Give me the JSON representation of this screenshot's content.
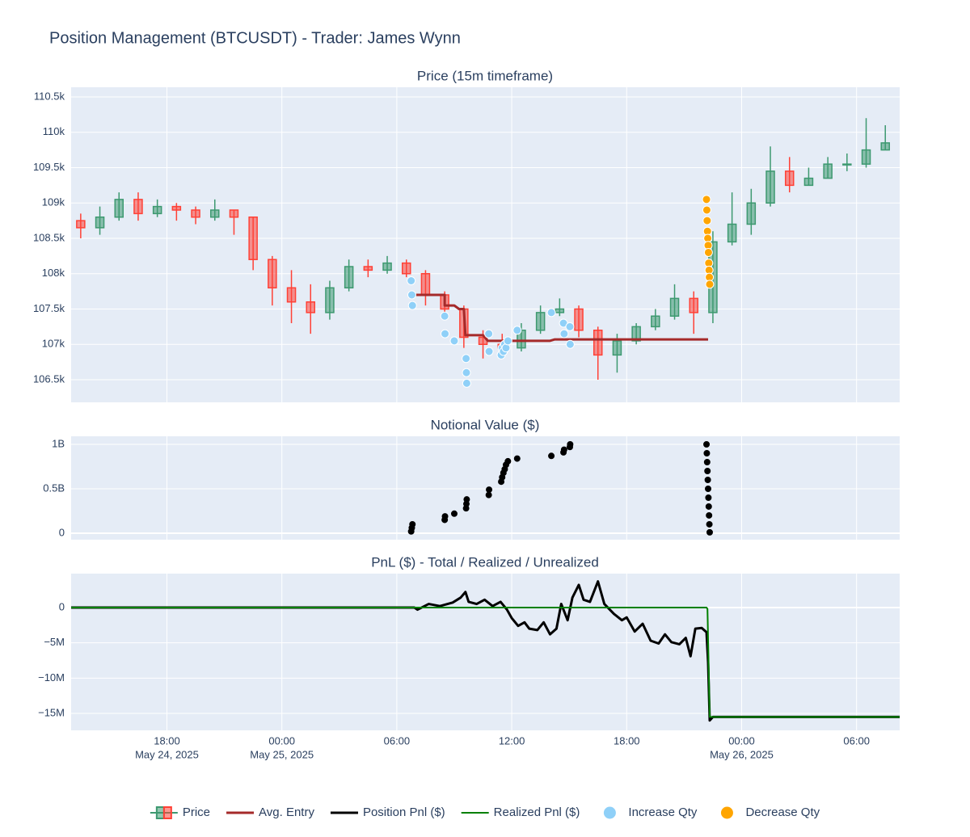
{
  "chart_data": {
    "type": "subplots",
    "title": "Position Management (BTCUSDT) - Trader: James Wynn",
    "xlim": [
      "2025-05-24 13:00",
      "2025-05-26 08:15"
    ],
    "xticks": [
      {
        "value": "2025-05-24 18:00",
        "label": "18:00",
        "date": "May 24, 2025"
      },
      {
        "value": "2025-05-25 00:00",
        "label": "00:00",
        "date": "May 25, 2025"
      },
      {
        "value": "2025-05-25 06:00",
        "label": "06:00"
      },
      {
        "value": "2025-05-25 12:00",
        "label": "12:00"
      },
      {
        "value": "2025-05-25 18:00",
        "label": "18:00"
      },
      {
        "value": "2025-05-26 00:00",
        "label": "00:00",
        "date": "May 26, 2025"
      },
      {
        "value": "2025-05-26 06:00",
        "label": "06:00"
      }
    ],
    "grid": true,
    "panels": [
      {
        "title": "Price (15m timeframe)",
        "ylim": [
          106180,
          110637
        ],
        "yticks": [
          {
            "value": 106500,
            "label": "106.5k"
          },
          {
            "value": 107000,
            "label": "107k"
          },
          {
            "value": 107500,
            "label": "107.5k"
          },
          {
            "value": 108000,
            "label": "108k"
          },
          {
            "value": 108500,
            "label": "108.5k"
          },
          {
            "value": 109000,
            "label": "109k"
          },
          {
            "value": 109500,
            "label": "109.5k"
          },
          {
            "value": 110000,
            "label": "110k"
          },
          {
            "value": 110500,
            "label": "110.5k"
          }
        ],
        "series": [
          {
            "name": "Price",
            "type": "candlestick",
            "increasing_color": "#3d9970",
            "decreasing_color": "#ff4136",
            "x": [
              "2025-05-24 13:30",
              "2025-05-24 14:30",
              "2025-05-24 15:30",
              "2025-05-24 16:30",
              "2025-05-24 17:30",
              "2025-05-24 18:30",
              "2025-05-24 19:30",
              "2025-05-24 20:30",
              "2025-05-24 21:30",
              "2025-05-24 22:30",
              "2025-05-24 23:30",
              "2025-05-25 00:30",
              "2025-05-25 01:30",
              "2025-05-25 02:30",
              "2025-05-25 03:30",
              "2025-05-25 04:30",
              "2025-05-25 05:30",
              "2025-05-25 06:30",
              "2025-05-25 07:30",
              "2025-05-25 08:30",
              "2025-05-25 09:30",
              "2025-05-25 10:30",
              "2025-05-25 11:30",
              "2025-05-25 12:30",
              "2025-05-25 13:30",
              "2025-05-25 14:30",
              "2025-05-25 15:30",
              "2025-05-25 16:30",
              "2025-05-25 17:30",
              "2025-05-25 18:30",
              "2025-05-25 19:30",
              "2025-05-25 20:30",
              "2025-05-25 21:30",
              "2025-05-25 22:30",
              "2025-05-25 23:30",
              "2025-05-26 00:30",
              "2025-05-26 01:30",
              "2025-05-26 02:30",
              "2025-05-26 03:30",
              "2025-05-26 04:30",
              "2025-05-26 05:30",
              "2025-05-26 06:30",
              "2025-05-26 07:30"
            ],
            "open": [
              108750,
              108650,
              108800,
              109050,
              108850,
              108950,
              108900,
              108800,
              108900,
              108800,
              108200,
              107800,
              107600,
              107450,
              107800,
              108100,
              108050,
              108150,
              108000,
              107700,
              107500,
              107100,
              107000,
              106950,
              107200,
              107450,
              107500,
              107200,
              106850,
              107050,
              107250,
              107400,
              107650,
              107450,
              108450,
              108700,
              109000,
              109450,
              109250,
              109350,
              109550,
              109550,
              109750
            ],
            "high": [
              108850,
              108950,
              109150,
              109150,
              109050,
              109000,
              108950,
              109050,
              108900,
              108800,
              108250,
              108050,
              107850,
              107900,
              108200,
              108200,
              108250,
              108200,
              108050,
              107750,
              107550,
              107200,
              107150,
              107300,
              107550,
              107650,
              107550,
              107250,
              107150,
              107300,
              107500,
              107850,
              107750,
              108600,
              109150,
              109200,
              109800,
              109650,
              109500,
              109650,
              109700,
              110200,
              110100
            ],
            "low": [
              108500,
              108550,
              108750,
              108750,
              108800,
              108750,
              108700,
              108750,
              108550,
              108050,
              107550,
              107300,
              107150,
              107350,
              107750,
              107950,
              108000,
              107950,
              107550,
              107350,
              106950,
              106800,
              106850,
              106900,
              107150,
              107400,
              107100,
              106500,
              106600,
              107000,
              107200,
              107350,
              107150,
              107300,
              108400,
              108550,
              108950,
              109150,
              109250,
              109350,
              109450,
              109500,
              109750
            ],
            "close": [
              108650,
              108800,
              109050,
              108850,
              108950,
              108900,
              108800,
              108900,
              108800,
              108200,
              107800,
              107600,
              107450,
              107800,
              108100,
              108050,
              108150,
              108000,
              107700,
              107500,
              107100,
              107000,
              106950,
              107200,
              107450,
              107500,
              107200,
              106850,
              107050,
              107250,
              107400,
              107650,
              107450,
              108450,
              108700,
              109000,
              109450,
              109250,
              109350,
              109550,
              109550,
              109750,
              109850
            ]
          },
          {
            "name": "Avg. Entry",
            "type": "line",
            "color": "#a52a2a",
            "width": 3,
            "x": [
              "2025-05-25 07:00",
              "2025-05-25 08:30",
              "2025-05-25 08:30",
              "2025-05-25 09:00",
              "2025-05-25 09:15",
              "2025-05-25 09:30",
              "2025-05-25 09:35",
              "2025-05-25 10:30",
              "2025-05-25 10:45",
              "2025-05-25 14:00",
              "2025-05-25 14:15",
              "2025-05-25 22:15"
            ],
            "values": [
              107700,
              107700,
              107550,
              107550,
              107500,
              107500,
              107130,
              107130,
              107050,
              107050,
              107070,
              107070
            ]
          },
          {
            "name": "Increase Qty",
            "type": "scatter",
            "color": "#8fd0f8",
            "x": [
              "2025-05-25 06:45",
              "2025-05-25 06:47",
              "2025-05-25 06:49",
              "2025-05-25 08:30",
              "2025-05-25 08:31",
              "2025-05-25 09:00",
              "2025-05-25 09:37",
              "2025-05-25 09:38",
              "2025-05-25 09:39",
              "2025-05-25 10:48",
              "2025-05-25 10:49",
              "2025-05-25 11:27",
              "2025-05-25 11:30",
              "2025-05-25 11:34",
              "2025-05-25 11:38",
              "2025-05-25 11:42",
              "2025-05-25 11:48",
              "2025-05-25 12:17",
              "2025-05-25 14:04",
              "2025-05-25 14:42",
              "2025-05-25 14:44",
              "2025-05-25 15:02",
              "2025-05-25 15:03"
            ],
            "values": [
              107900,
              107700,
              107550,
              107400,
              107150,
              107050,
              106800,
              106600,
              106450,
              107150,
              106900,
              106850,
              106950,
              106900,
              107000,
              106950,
              107050,
              107200,
              107450,
              107300,
              107150,
              107250,
              107000
            ]
          },
          {
            "name": "Decrease Qty",
            "type": "scatter",
            "color": "#ffa500",
            "x": [
              "2025-05-25 22:10",
              "2025-05-25 22:11",
              "2025-05-25 22:12",
              "2025-05-25 22:13",
              "2025-05-25 22:14",
              "2025-05-25 22:15",
              "2025-05-25 22:16",
              "2025-05-25 22:17",
              "2025-05-25 22:18",
              "2025-05-25 22:19",
              "2025-05-25 22:20"
            ],
            "values": [
              109050,
              108900,
              108750,
              108600,
              108500,
              108400,
              108300,
              108150,
              108050,
              107950,
              107850
            ]
          }
        ]
      },
      {
        "title": "Notional Value ($)",
        "ylim": [
          -73000000,
          1091000000
        ],
        "yticks": [
          0,
          {
            "value": 500000000,
            "label": "0.5B"
          },
          {
            "value": 1000000000,
            "label": "1B"
          }
        ],
        "series": [
          {
            "type": "scatter",
            "color": "#000000",
            "x": [
              "2025-05-25 06:45",
              "2025-05-25 06:47",
              "2025-05-25 06:49",
              "2025-05-25 08:30",
              "2025-05-25 08:31",
              "2025-05-25 09:00",
              "2025-05-25 09:37",
              "2025-05-25 09:38",
              "2025-05-25 09:39",
              "2025-05-25 10:48",
              "2025-05-25 10:49",
              "2025-05-25 11:27",
              "2025-05-25 11:30",
              "2025-05-25 11:34",
              "2025-05-25 11:38",
              "2025-05-25 11:42",
              "2025-05-25 11:48",
              "2025-05-25 12:17",
              "2025-05-25 14:04",
              "2025-05-25 14:42",
              "2025-05-25 14:44",
              "2025-05-25 15:02",
              "2025-05-25 15:03",
              "2025-05-25 22:10",
              "2025-05-25 22:11",
              "2025-05-25 22:12",
              "2025-05-25 22:13",
              "2025-05-25 22:14",
              "2025-05-25 22:15",
              "2025-05-25 22:16",
              "2025-05-25 22:17",
              "2025-05-25 22:18",
              "2025-05-25 22:19",
              "2025-05-25 22:20"
            ],
            "values": [
              20000000,
              60000000,
              100000000,
              150000000,
              190000000,
              220000000,
              280000000,
              330000000,
              380000000,
              430000000,
              490000000,
              580000000,
              630000000,
              680000000,
              720000000,
              770000000,
              810000000,
              840000000,
              870000000,
              910000000,
              940000000,
              970000000,
              1000000000,
              1000000000,
              900000000,
              800000000,
              700000000,
              600000000,
              500000000,
              400000000,
              300000000,
              200000000,
              100000000,
              10000000
            ]
          }
        ]
      },
      {
        "title": "PnL ($) - Total / Realized / Unrealized",
        "ylim": [
          -17400000,
          4800000
        ],
        "yticks": [
          {
            "value": -15000000,
            "label": "−15M"
          },
          {
            "value": -10000000,
            "label": "−10M"
          },
          {
            "value": -5000000,
            "label": "−5M"
          },
          0
        ],
        "series": [
          {
            "name": "Position Pnl ($)",
            "type": "line",
            "color": "#000000",
            "width": 3,
            "x": [
              "2025-05-24 13:00",
              "2025-05-25 06:55",
              "2025-05-25 07:05",
              "2025-05-25 07:40",
              "2025-05-25 08:15",
              "2025-05-25 08:55",
              "2025-05-25 09:20",
              "2025-05-25 09:35",
              "2025-05-25 09:45",
              "2025-05-25 10:10",
              "2025-05-25 10:35",
              "2025-05-25 11:00",
              "2025-05-25 11:25",
              "2025-05-25 11:45",
              "2025-05-25 12:00",
              "2025-05-25 12:20",
              "2025-05-25 12:40",
              "2025-05-25 12:55",
              "2025-05-25 13:20",
              "2025-05-25 13:40",
              "2025-05-25 14:00",
              "2025-05-25 14:20",
              "2025-05-25 14:35",
              "2025-05-25 14:55",
              "2025-05-25 15:10",
              "2025-05-25 15:30",
              "2025-05-25 15:45",
              "2025-05-25 16:05",
              "2025-05-25 16:30",
              "2025-05-25 16:50",
              "2025-05-25 17:20",
              "2025-05-25 17:45",
              "2025-05-25 18:00",
              "2025-05-25 18:25",
              "2025-05-25 18:50",
              "2025-05-25 19:15",
              "2025-05-25 19:40",
              "2025-05-25 20:00",
              "2025-05-25 20:20",
              "2025-05-25 20:45",
              "2025-05-25 21:05",
              "2025-05-25 21:20",
              "2025-05-25 21:35",
              "2025-05-25 21:55",
              "2025-05-25 22:10",
              "2025-05-25 22:15",
              "2025-05-25 22:20",
              "2025-05-25 22:30",
              "2025-05-26 08:15"
            ],
            "values": [
              0,
              0,
              -300000,
              500000,
              200000,
              700000,
              1400000,
              2200000,
              800000,
              500000,
              1100000,
              200000,
              800000,
              -300000,
              -1500000,
              -2600000,
              -2100000,
              -3000000,
              -3200000,
              -2100000,
              -3800000,
              -3000000,
              500000,
              -1800000,
              1400000,
              3200000,
              1100000,
              800000,
              3700000,
              500000,
              -900000,
              -1800000,
              -1400000,
              -3400000,
              -2300000,
              -4700000,
              -5100000,
              -3800000,
              -4900000,
              -5200000,
              -4300000,
              -6900000,
              -3000000,
              -2900000,
              -3500000,
              -7800000,
              -16000000,
              -15500000,
              -15500000
            ]
          },
          {
            "name": "Realized Pnl ($)",
            "type": "line",
            "color": "#008000",
            "width": 2,
            "x": [
              "2025-05-24 13:00",
              "2025-05-25 22:10",
              "2025-05-25 22:13",
              "2025-05-25 22:20",
              "2025-05-26 08:15"
            ],
            "values": [
              0,
              0,
              -200000,
              -15500000,
              -15500000
            ]
          }
        ]
      }
    ]
  }
}
